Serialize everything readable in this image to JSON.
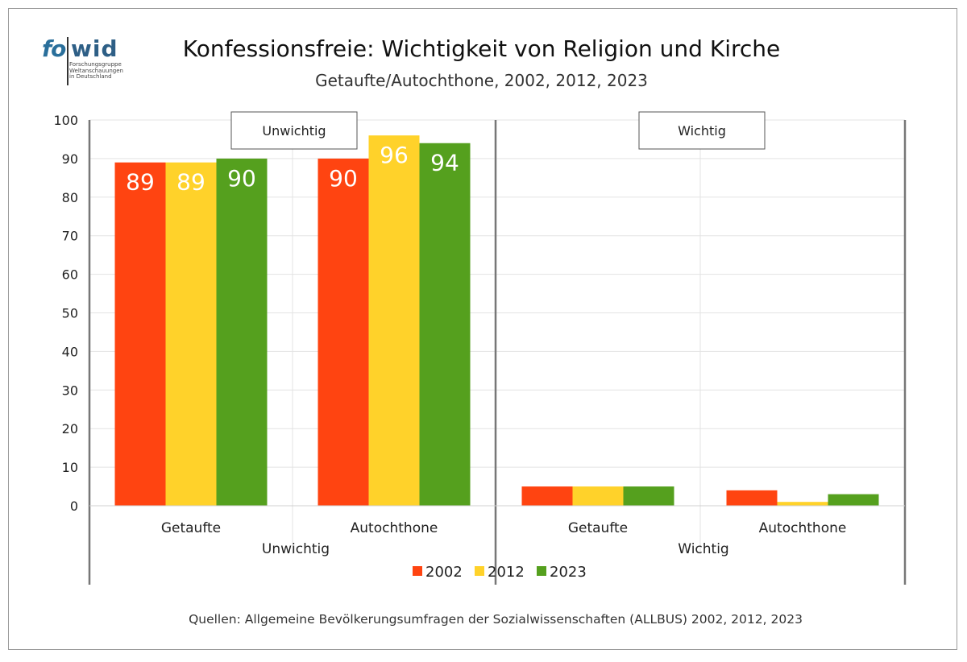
{
  "logo": {
    "text_fo": "fo",
    "text_wid": "wid",
    "tagline": [
      "Forschungsgruppe",
      "Weltanschauungen",
      "in Deutschland"
    ]
  },
  "title": "Konfessionsfreie: Wichtigkeit von Religion und Kirche",
  "subtitle": "Getaufte/Autochthone, 2002, 2012, 2023",
  "source": "Quellen: Allgemeine Bevölkerungsumfragen der Sozialwissenschaften (ALLBUS) 2002, 2012, 2023",
  "colors": {
    "2002": "#ff4411",
    "2012": "#ffd22a",
    "2023": "#55a01e"
  },
  "chart_data": {
    "type": "bar",
    "ylim": [
      0,
      100
    ],
    "yticks": [
      0,
      10,
      20,
      30,
      40,
      50,
      60,
      70,
      80,
      90,
      100
    ],
    "grid": true,
    "legend_position": "bottom",
    "series_names": [
      "2002",
      "2012",
      "2023"
    ],
    "panels": [
      {
        "label": "Unwichtig",
        "categories": [
          "Getaufte",
          "Autochthone"
        ],
        "series": [
          {
            "name": "2002",
            "values": [
              89,
              90
            ]
          },
          {
            "name": "2012",
            "values": [
              89,
              96
            ]
          },
          {
            "name": "2023",
            "values": [
              90,
              94
            ]
          }
        ],
        "show_data_labels": true
      },
      {
        "label": "Wichtig",
        "categories": [
          "Getaufte",
          "Autochthone"
        ],
        "series": [
          {
            "name": "2002",
            "values": [
              5,
              4
            ]
          },
          {
            "name": "2012",
            "values": [
              5,
              1
            ]
          },
          {
            "name": "2023",
            "values": [
              5,
              3
            ]
          }
        ],
        "show_data_labels": false
      }
    ]
  }
}
